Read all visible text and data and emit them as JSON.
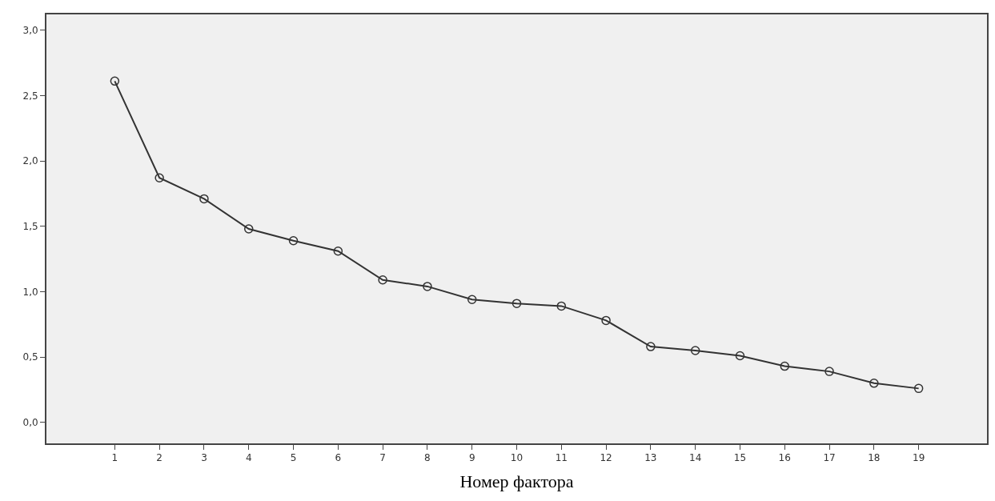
{
  "chart_data": {
    "type": "line",
    "xlabel": "Номер фактора",
    "x": [
      1,
      2,
      3,
      4,
      5,
      6,
      7,
      8,
      9,
      10,
      11,
      12,
      13,
      14,
      15,
      16,
      17,
      18,
      19
    ],
    "series": [
      {
        "color": "#333333",
        "values": [
          2.61,
          1.87,
          1.71,
          1.48,
          1.39,
          1.31,
          1.09,
          1.04,
          0.94,
          0.91,
          0.89,
          0.78,
          0.58,
          0.55,
          0.51,
          0.43,
          0.39,
          0.3,
          0.26
        ]
      }
    ],
    "xlim": [
      -0.53,
      20.53
    ],
    "xticks": [
      1,
      2,
      3,
      4,
      5,
      6,
      7,
      8,
      9,
      10,
      11,
      12,
      13,
      14,
      15,
      16,
      17,
      18,
      19
    ],
    "ylim": [
      -0.16,
      3.12
    ],
    "yticks": [
      {
        "value": 0,
        "label": "0,0"
      },
      {
        "value": 0.5,
        "label": "0,5"
      },
      {
        "value": 1,
        "label": "1,0"
      },
      {
        "value": 1.5,
        "label": "1,5"
      },
      {
        "value": 2,
        "label": "2,0"
      },
      {
        "value": 2.5,
        "label": "2,5"
      },
      {
        "value": 3,
        "label": "3,0"
      }
    ],
    "grid": false,
    "marker": "circle",
    "line_style": "solid"
  }
}
